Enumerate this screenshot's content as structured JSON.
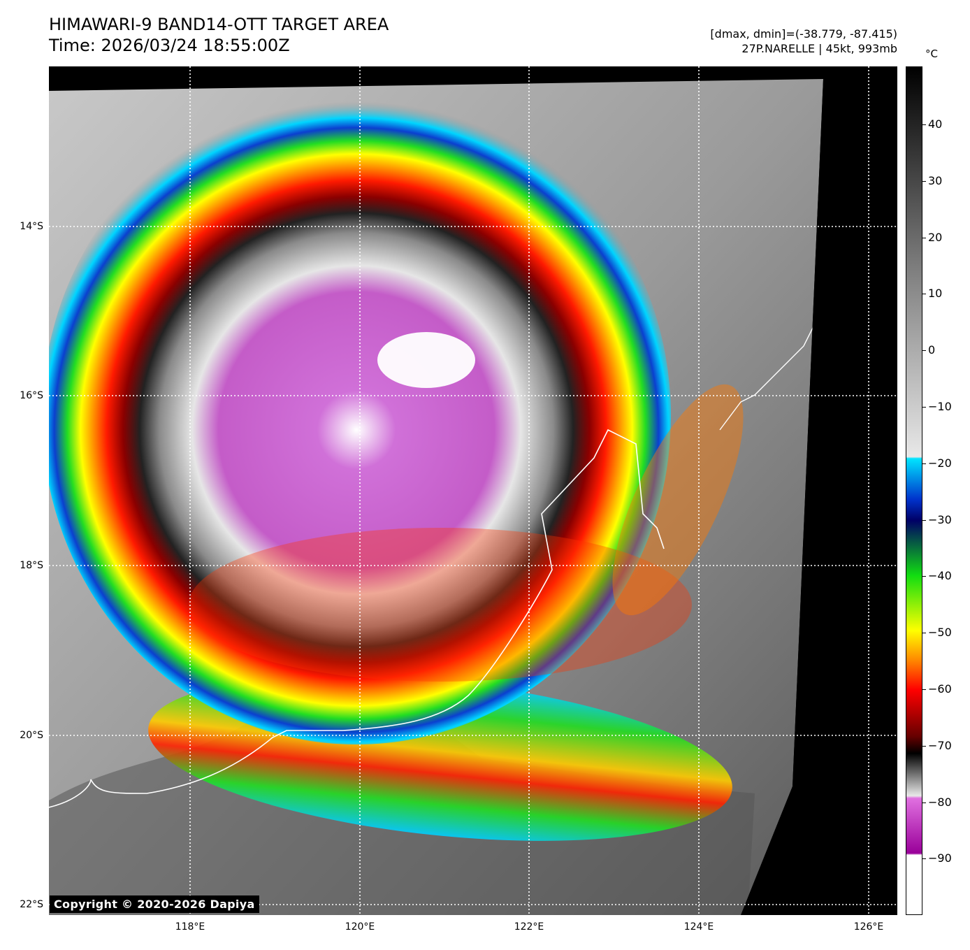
{
  "header": {
    "title_line1": "HIMAWARI-9 BAND14-OTT TARGET AREA",
    "title_line2": "Time: 2026/03/24 18:55:00Z",
    "range_text": "[dmax, dmin]=(-38.779, -87.415)",
    "storm_text": "27P.NARELLE | 45kt, 993mb"
  },
  "map": {
    "description_icon": "satellite-infrared-image",
    "latitude_labels": [
      "14°S",
      "16°S",
      "18°S",
      "20°S",
      "22°S"
    ],
    "longitude_labels": [
      "118°E",
      "120°E",
      "122°E",
      "124°E",
      "126°E"
    ],
    "copyright": "Copyright © 2020-2026 Dapiya"
  },
  "colorbar": {
    "unit": "°C",
    "tick_labels": [
      "40",
      "30",
      "20",
      "10",
      "0",
      "−10",
      "−20",
      "−30",
      "−40",
      "−50",
      "−60",
      "−70",
      "−80",
      "−90"
    ],
    "colors": {
      "hot": "#000000",
      "warm_gray": "#7f7f7f",
      "cold_gray": "#e8e8e8",
      "cyan": "#00e5ff",
      "blue": "#0033cc",
      "navy": "#000066",
      "green": "#11dd11",
      "yellow": "#ffff00",
      "orange": "#ff8800",
      "red": "#ff0000",
      "darkred": "#660000",
      "magenta": "#e070e0",
      "purple": "#990099",
      "white": "#ffffff"
    }
  }
}
